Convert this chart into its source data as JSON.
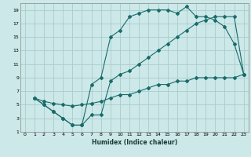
{
  "xlabel": "Humidex (Indice chaleur)",
  "ylabel": "",
  "bg_color": "#cce8e8",
  "grid_color": "#aacccc",
  "line_color": "#1a6b6b",
  "xlim": [
    -0.5,
    23.5
  ],
  "ylim": [
    1,
    20
  ],
  "xticks": [
    0,
    1,
    2,
    3,
    4,
    5,
    6,
    7,
    8,
    9,
    10,
    11,
    12,
    13,
    14,
    15,
    16,
    17,
    18,
    19,
    20,
    21,
    22,
    23
  ],
  "yticks": [
    1,
    3,
    5,
    7,
    9,
    11,
    13,
    15,
    17,
    19
  ],
  "line1_x": [
    1,
    2,
    3,
    4,
    5,
    6,
    7,
    8,
    9,
    10,
    11,
    12,
    13,
    14,
    15,
    16,
    17,
    18,
    19,
    20,
    21,
    22,
    23
  ],
  "line1_y": [
    6,
    5,
    4,
    3,
    2,
    2,
    8,
    9,
    15,
    16,
    18,
    18.5,
    19,
    19,
    19,
    18.5,
    19.5,
    18,
    18,
    17.5,
    16.5,
    14,
    9.5
  ],
  "line2_x": [
    1,
    2,
    3,
    4,
    5,
    6,
    7,
    8,
    9,
    10,
    11,
    12,
    13,
    14,
    15,
    16,
    17,
    18,
    19,
    20,
    21,
    22,
    23
  ],
  "line2_y": [
    6,
    5,
    4,
    3,
    2,
    2,
    3.5,
    3.5,
    8.5,
    9.5,
    10,
    11,
    12,
    13,
    14,
    15,
    16,
    17,
    17.5,
    18,
    18,
    18,
    9.5
  ],
  "line3_x": [
    1,
    2,
    3,
    4,
    5,
    6,
    7,
    8,
    9,
    10,
    11,
    12,
    13,
    14,
    15,
    16,
    17,
    18,
    19,
    20,
    21,
    22,
    23
  ],
  "line3_y": [
    6,
    5.5,
    5.2,
    5.0,
    4.8,
    5.0,
    5.2,
    5.5,
    6.0,
    6.5,
    6.5,
    7.0,
    7.5,
    8.0,
    8.0,
    8.5,
    8.5,
    9.0,
    9.0,
    9.0,
    9.0,
    9.0,
    9.5
  ]
}
